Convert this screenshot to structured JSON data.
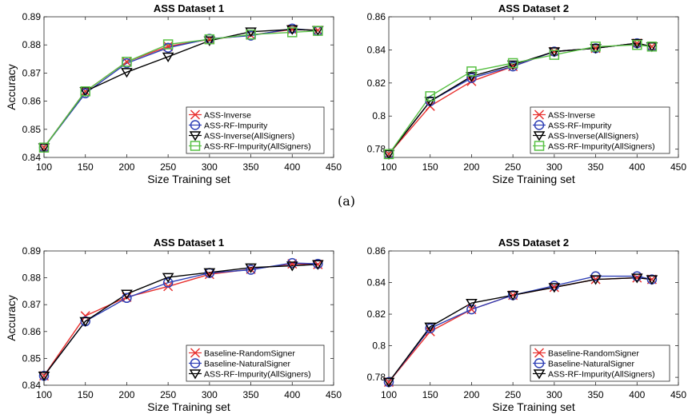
{
  "caption": "(a)",
  "colors": {
    "red": "#e8312f",
    "blue": "#2e3fb5",
    "black": "#000000",
    "green": "#57c043"
  },
  "chart_data": [
    {
      "type": "line",
      "title": "ASS Dataset 1",
      "xlabel": "Size Training set",
      "ylabel": "Accuracy",
      "xlim": [
        100,
        450
      ],
      "ylim": [
        0.84,
        0.89
      ],
      "xticks": [
        "100",
        "150",
        "200",
        "250",
        "300",
        "350",
        "400",
        "450"
      ],
      "yticks": [
        "0.84",
        "0.85",
        "0.86",
        "0.87",
        "0.88",
        "0.89"
      ],
      "legend_position": "bottom-right",
      "x": [
        100,
        150,
        200,
        250,
        300,
        350,
        400,
        431
      ],
      "series": [
        {
          "name": "ASS-Inverse",
          "marker": "x",
          "color": "#e8312f",
          "values": [
            0.8435,
            0.8635,
            0.874,
            0.8795,
            0.882,
            0.8835,
            0.8855,
            0.8852
          ]
        },
        {
          "name": "ASS-RF-Impurity",
          "marker": "o",
          "color": "#2e3fb5",
          "values": [
            0.8435,
            0.8628,
            0.8735,
            0.879,
            0.8822,
            0.8833,
            0.8858,
            0.885
          ]
        },
        {
          "name": "ASS-Inverse(AllSigners)",
          "marker": "v",
          "color": "#000000",
          "values": [
            0.8435,
            0.8635,
            0.8703,
            0.8758,
            0.8815,
            0.8847,
            0.8855,
            0.8852
          ]
        },
        {
          "name": "ASS-RF-Impurity(AllSigners)",
          "marker": "s",
          "color": "#57c043",
          "values": [
            0.8435,
            0.8635,
            0.874,
            0.8802,
            0.882,
            0.8837,
            0.8845,
            0.885
          ]
        }
      ]
    },
    {
      "type": "line",
      "title": "ASS Dataset 2",
      "xlabel": "Size Training set",
      "ylabel": "",
      "xlim": [
        100,
        450
      ],
      "ylim": [
        0.775,
        0.86
      ],
      "xticks": [
        "100",
        "150",
        "200",
        "250",
        "300",
        "350",
        "400",
        "450"
      ],
      "yticks": [
        "0.78",
        "0.8",
        "0.82",
        "0.84",
        "0.86"
      ],
      "legend_position": "bottom-right",
      "x": [
        100,
        150,
        200,
        250,
        300,
        350,
        400,
        418
      ],
      "series": [
        {
          "name": "ASS-Inverse",
          "marker": "x",
          "color": "#e8312f",
          "values": [
            0.777,
            0.806,
            0.821,
            0.83,
            0.839,
            0.841,
            0.844,
            0.842
          ]
        },
        {
          "name": "ASS-RF-Impurity",
          "marker": "o",
          "color": "#2e3fb5",
          "values": [
            0.777,
            0.809,
            0.823,
            0.83,
            0.839,
            0.841,
            0.844,
            0.842
          ]
        },
        {
          "name": "ASS-Inverse(AllSigners)",
          "marker": "v",
          "color": "#000000",
          "values": [
            0.777,
            0.809,
            0.824,
            0.831,
            0.839,
            0.841,
            0.844,
            0.842
          ]
        },
        {
          "name": "ASS-RF-Impurity(AllSigners)",
          "marker": "s",
          "color": "#57c043",
          "values": [
            0.777,
            0.812,
            0.827,
            0.832,
            0.837,
            0.842,
            0.843,
            0.842
          ]
        }
      ]
    },
    {
      "type": "line",
      "title": "ASS Dataset 1",
      "xlabel": "Size Training set",
      "ylabel": "Accuracy",
      "xlim": [
        100,
        450
      ],
      "ylim": [
        0.84,
        0.89
      ],
      "xticks": [
        "100",
        "150",
        "200",
        "250",
        "300",
        "350",
        "400",
        "450"
      ],
      "yticks": [
        "0.84",
        "0.85",
        "0.86",
        "0.87",
        "0.88",
        "0.89"
      ],
      "legend_position": "bottom-right",
      "x": [
        100,
        150,
        200,
        250,
        300,
        350,
        400,
        431
      ],
      "series": [
        {
          "name": "Baseline-RandomSigner",
          "marker": "x",
          "color": "#e8312f",
          "values": [
            0.8435,
            0.8658,
            0.8728,
            0.8768,
            0.8813,
            0.8832,
            0.8852,
            0.885
          ]
        },
        {
          "name": "Baseline-NaturalSigner",
          "marker": "o",
          "color": "#2e3fb5",
          "values": [
            0.8435,
            0.8638,
            0.8725,
            0.8782,
            0.8818,
            0.883,
            0.8855,
            0.8852
          ]
        },
        {
          "name": "ASS-RF-Impurity(AllSigners)",
          "marker": "v",
          "color": "#000000",
          "values": [
            0.8435,
            0.8638,
            0.874,
            0.8802,
            0.882,
            0.8838,
            0.8845,
            0.885
          ]
        }
      ]
    },
    {
      "type": "line",
      "title": "ASS Dataset 2",
      "xlabel": "Size Training set",
      "ylabel": "",
      "xlim": [
        100,
        450
      ],
      "ylim": [
        0.775,
        0.86
      ],
      "xticks": [
        "100",
        "150",
        "200",
        "250",
        "300",
        "350",
        "400",
        "450"
      ],
      "yticks": [
        "0.78",
        "0.8",
        "0.82",
        "0.84",
        "0.86"
      ],
      "legend_position": "bottom-right",
      "x": [
        100,
        150,
        200,
        250,
        300,
        350,
        400,
        418
      ],
      "series": [
        {
          "name": "Baseline-RandomSigner",
          "marker": "x",
          "color": "#e8312f",
          "values": [
            0.777,
            0.809,
            0.823,
            0.832,
            0.837,
            0.842,
            0.843,
            0.842
          ]
        },
        {
          "name": "Baseline-NaturalSigner",
          "marker": "o",
          "color": "#2e3fb5",
          "values": [
            0.777,
            0.811,
            0.823,
            0.832,
            0.838,
            0.844,
            0.844,
            0.842
          ]
        },
        {
          "name": "ASS-RF-Impurity(AllSigners)",
          "marker": "v",
          "color": "#000000",
          "values": [
            0.777,
            0.812,
            0.827,
            0.832,
            0.837,
            0.842,
            0.843,
            0.842
          ]
        }
      ]
    }
  ]
}
